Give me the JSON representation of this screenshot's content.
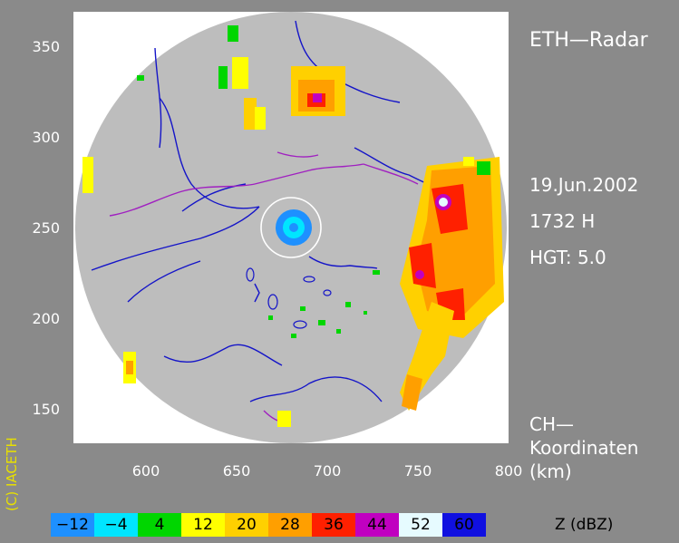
{
  "header": {
    "title": "ETH—Radar"
  },
  "info": {
    "date": "19.Jun.2002",
    "time": "1732 H",
    "height": "HGT: 5.0"
  },
  "coords": {
    "line1": "CH—",
    "line2": "Koordinaten",
    "line3": "(km)"
  },
  "copyright": "(C) IACETH",
  "y_ticks": [
    "350",
    "300",
    "250",
    "200",
    "150"
  ],
  "x_ticks": [
    "600",
    "650",
    "700",
    "750",
    "800"
  ],
  "legend": {
    "unit": "Z  (dBZ)",
    "items": [
      {
        "label": "−12",
        "color": "#1e90ff"
      },
      {
        "label": "−4",
        "color": "#00e5ff"
      },
      {
        "label": "4",
        "color": "#00d600"
      },
      {
        "label": "12",
        "color": "#ffff00"
      },
      {
        "label": "20",
        "color": "#ffd000"
      },
      {
        "label": "28",
        "color": "#ff9f00"
      },
      {
        "label": "36",
        "color": "#ff2000"
      },
      {
        "label": "44",
        "color": "#c000c0"
      },
      {
        "label": "52",
        "color": "#e6fbff"
      },
      {
        "label": "60",
        "color": "#1010e0"
      }
    ]
  },
  "colors": {
    "radar_disk": "#bdbdbd",
    "borders": "#a020c0",
    "rivers": "#1414c8",
    "lakes": "#1414c8"
  }
}
